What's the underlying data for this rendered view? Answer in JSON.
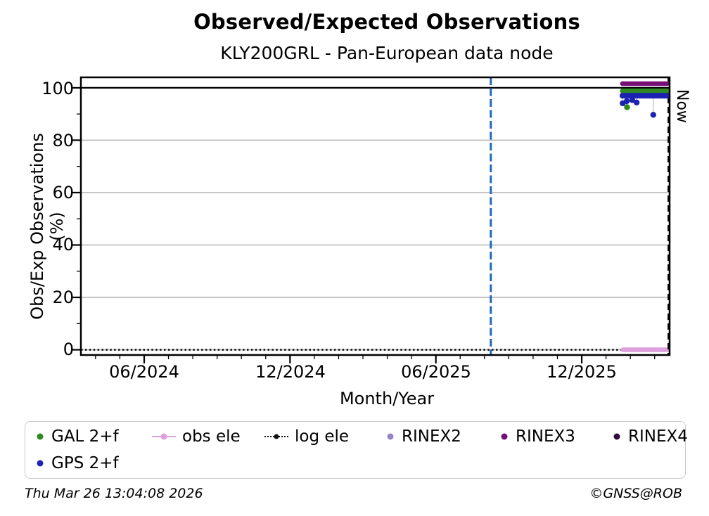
{
  "chart_data": {
    "type": "scatter",
    "title": "Observed/Expected Observations",
    "subtitle": "KLY200GRL - Pan-European data node",
    "xlabel": "Month/Year",
    "ylabel": "Obs/Exp Observations (%)",
    "x_unit": "decimal_year",
    "xlim": [
      2024.1997,
      2026.218
    ],
    "ylim": [
      -2,
      104
    ],
    "grid": "horizontal-only",
    "gridline_color": "#b3b3b3",
    "gridlines_y": [
      0,
      20,
      40,
      60,
      80
    ],
    "ref_line_y": 100,
    "y_ticks": [
      {
        "v": 0,
        "label": "0"
      },
      {
        "v": 20,
        "label": "20"
      },
      {
        "v": 40,
        "label": "40"
      },
      {
        "v": 60,
        "label": "60"
      },
      {
        "v": 80,
        "label": "80"
      },
      {
        "v": 100,
        "label": "100"
      }
    ],
    "y_minor_ticks": [
      10,
      30,
      50,
      70,
      90
    ],
    "x_ticks": [
      {
        "v": 2024.4167,
        "label": "06/2024"
      },
      {
        "v": 2024.9167,
        "label": "12/2024"
      },
      {
        "v": 2025.4167,
        "label": "06/2025"
      },
      {
        "v": 2025.9167,
        "label": "12/2025"
      }
    ],
    "x_minor": {
      "start": 2024.25,
      "step": 0.0833333,
      "count": 24
    },
    "vlines": [
      {
        "name": "event-line",
        "x": 2025.605,
        "approx_date": "2025-08-08",
        "color": "#1b6ac1",
        "dash": "11,4.5",
        "width": 3,
        "label": ""
      },
      {
        "name": "now-line",
        "x": 2026.214,
        "approx_date": "2026-03-26",
        "color": "#000000",
        "dash": "9,5",
        "width": 2.5,
        "label": "Now"
      }
    ],
    "now_label": "Now",
    "series": [
      {
        "name": "log ele",
        "color": "#111111",
        "style": "dotted",
        "lw": 2.6,
        "z": 0,
        "segments": [
          {
            "x1": 2024.1997,
            "x2": 2026.214,
            "y": 0
          }
        ],
        "points": []
      },
      {
        "name": "obs ele",
        "color": "#dda0dd",
        "style": "band",
        "lw": 6.5,
        "z": 0,
        "segments": [
          {
            "x1": 2026.058,
            "x2": 2026.21,
            "y": 0
          }
        ],
        "points": []
      },
      {
        "name": "RINEX3",
        "color": "#750f75",
        "style": "band",
        "lw": 6.5,
        "z": 1,
        "segments": [
          {
            "x1": 2026.056,
            "x2": 2026.211,
            "y": 101.6
          }
        ],
        "points": []
      },
      {
        "name": "GAL 2+f",
        "color": "#2e8b22",
        "style": "band",
        "lw": 7,
        "z": 1,
        "segments": [
          {
            "x1": 2026.056,
            "x2": 2026.211,
            "y": 98.8
          }
        ],
        "points": [
          {
            "x": 2026.072,
            "y": 92.6
          }
        ]
      },
      {
        "name": "GPS 2+f",
        "color": "#1c22b2",
        "style": "band",
        "lw": 8,
        "z": 1,
        "segments": [
          {
            "x1": 2026.056,
            "x2": 2026.211,
            "y": 97.0
          }
        ],
        "points": [
          {
            "x": 2026.057,
            "y": 94.1
          },
          {
            "x": 2026.071,
            "y": 94.9
          },
          {
            "x": 2026.09,
            "y": 95.3
          },
          {
            "x": 2026.105,
            "y": 94.4
          },
          {
            "x": 2026.162,
            "y": 89.7
          }
        ]
      },
      {
        "name": "RINEX2",
        "color": "#9683c9",
        "style": "band",
        "lw": 6,
        "z": 1,
        "segments": [],
        "points": []
      },
      {
        "name": "RINEX4",
        "color": "#2e0d3a",
        "style": "band",
        "lw": 6,
        "z": 1,
        "segments": [],
        "points": []
      }
    ],
    "drop_lines": [
      {
        "x": 2026.0565,
        "y1": 97.0,
        "y2": 94.1
      },
      {
        "x": 2026.072,
        "y1": 98.8,
        "y2": 92.6
      },
      {
        "x": 2026.105,
        "y1": 97.0,
        "y2": 94.4
      },
      {
        "x": 2026.162,
        "y1": 97.0,
        "y2": 89.7
      }
    ],
    "drop_line_color": "#cccccc"
  },
  "legend": {
    "items": [
      {
        "label": "GAL 2+f",
        "marker": "dot",
        "color": "#2e8b22"
      },
      {
        "label": "obs ele",
        "marker": "line-dot",
        "color": "#dda0dd"
      },
      {
        "label": "log ele",
        "marker": "dotted-line",
        "color": "#111111"
      },
      {
        "label": "RINEX2",
        "marker": "dot",
        "color": "#9683c9"
      },
      {
        "label": "RINEX3",
        "marker": "dot",
        "color": "#750f75"
      },
      {
        "label": "RINEX4",
        "marker": "dot",
        "color": "#2e0d3a"
      },
      {
        "label": "GPS 2+f",
        "marker": "dot",
        "color": "#1c22b2"
      }
    ]
  },
  "footer": {
    "timestamp": "Thu Mar 26 13:04:08 2026",
    "copyright": "©GNSS@ROB"
  }
}
